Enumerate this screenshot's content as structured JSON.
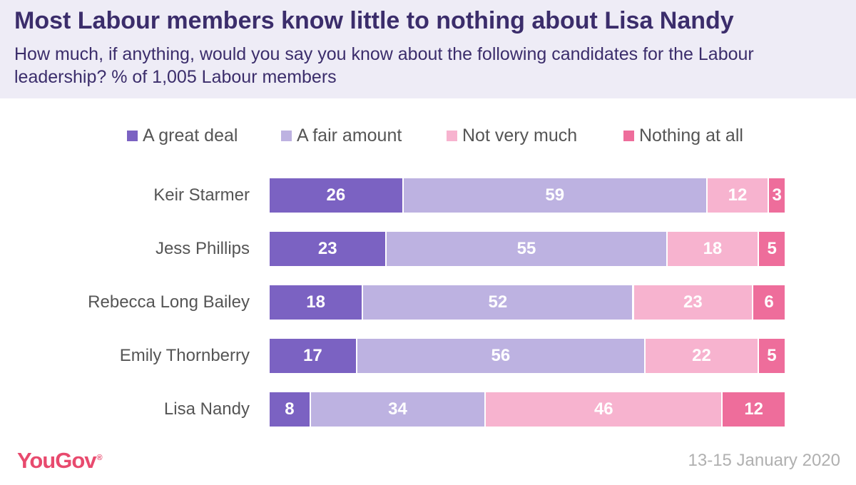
{
  "title": "Most Labour members know little to nothing about Lisa Nandy",
  "subtitle": "How much, if anything, would you say you know about the following candidates for the Labour leadership? % of 1,005 Labour members",
  "brand": {
    "logo_text": "YouGov",
    "logo_mark": "®"
  },
  "date": "13-15 January 2020",
  "colors": {
    "header_bg": "#eeecf6",
    "title": "#3b2d6b",
    "a_great_deal": "#7b62c2",
    "a_fair_amount": "#bdb2e1",
    "not_very_much": "#f7b3cf",
    "nothing_at_all": "#ee6d9b",
    "brand": "#e84a6e"
  },
  "chart_data": {
    "type": "bar",
    "orientation": "horizontal",
    "stacked": true,
    "categories": [
      "Keir Starmer",
      "Jess Phillips",
      "Rebecca Long Bailey",
      "Emily Thornberry",
      "Lisa Nandy"
    ],
    "series": [
      {
        "name": "A great deal",
        "color": "#7b62c2",
        "values": [
          26,
          23,
          18,
          17,
          8
        ]
      },
      {
        "name": "A fair amount",
        "color": "#bdb2e1",
        "values": [
          59,
          55,
          52,
          56,
          34
        ]
      },
      {
        "name": "Not very much",
        "color": "#f7b3cf",
        "values": [
          12,
          18,
          23,
          22,
          46
        ]
      },
      {
        "name": "Nothing at all",
        "color": "#ee6d9b",
        "values": [
          3,
          5,
          6,
          5,
          12
        ]
      }
    ],
    "legend_position": "top",
    "data_labels": true,
    "grid": false
  }
}
